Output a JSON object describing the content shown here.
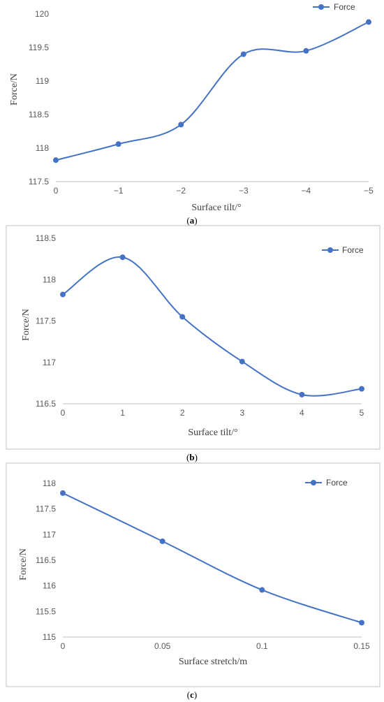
{
  "series_color": "#4472C4",
  "chart_data": [
    {
      "type": "line",
      "smooth": true,
      "caption_paren_open": "(",
      "caption_letter": "a",
      "caption_paren_close": ")",
      "xlabel": "Surface tilt/°",
      "ylabel": "Force/N",
      "x": [
        0,
        -1,
        -2,
        -3,
        -4,
        -5
      ],
      "x_tick_labels": [
        "0",
        "−1",
        "−2",
        "−3",
        "−4",
        "−5"
      ],
      "y_tick_labels": [
        "117.5",
        "118",
        "118.5",
        "119",
        "119.5",
        "120"
      ],
      "ylim": [
        117.5,
        120
      ],
      "y_ticks": [
        117.5,
        118,
        118.5,
        119,
        119.5,
        120
      ],
      "series": [
        {
          "name": "Force",
          "values": [
            117.82,
            118.06,
            118.35,
            119.4,
            119.45,
            119.88
          ]
        }
      ],
      "legend_position": "top-right",
      "grid": false
    },
    {
      "type": "line",
      "smooth": true,
      "caption_paren_open": "(",
      "caption_letter": "b",
      "caption_paren_close": ")",
      "xlabel": "Surface tilt/°",
      "ylabel": "Force/N",
      "x": [
        0,
        1,
        2,
        3,
        4,
        5
      ],
      "x_tick_labels": [
        "0",
        "1",
        "2",
        "3",
        "4",
        "5"
      ],
      "y_tick_labels": [
        "116.5",
        "117",
        "117.5",
        "118",
        "118.5"
      ],
      "ylim": [
        116.5,
        118.5
      ],
      "y_ticks": [
        116.5,
        117,
        117.5,
        118,
        118.5
      ],
      "series": [
        {
          "name": "Force",
          "values": [
            117.82,
            118.27,
            117.55,
            117.01,
            116.61,
            116.68
          ]
        }
      ],
      "legend_position": "top-right",
      "grid": false
    },
    {
      "type": "line",
      "smooth": true,
      "caption_paren_open": "(",
      "caption_letter": "c",
      "caption_paren_close": ")",
      "xlabel": "Surface stretch/m",
      "ylabel": "Force/N",
      "x": [
        0,
        0.05,
        0.1,
        0.15
      ],
      "x_tick_labels": [
        "0",
        "0.05",
        "0.1",
        "0.15"
      ],
      "y_tick_labels": [
        "115",
        "115.5",
        "116",
        "116.5",
        "117",
        "117.5",
        "118"
      ],
      "ylim": [
        115,
        118
      ],
      "y_ticks": [
        115,
        115.5,
        116,
        116.5,
        117,
        117.5,
        118
      ],
      "series": [
        {
          "name": "Force",
          "values": [
            117.81,
            116.87,
            115.92,
            115.28
          ]
        }
      ],
      "legend_position": "top-right",
      "grid": false
    }
  ]
}
